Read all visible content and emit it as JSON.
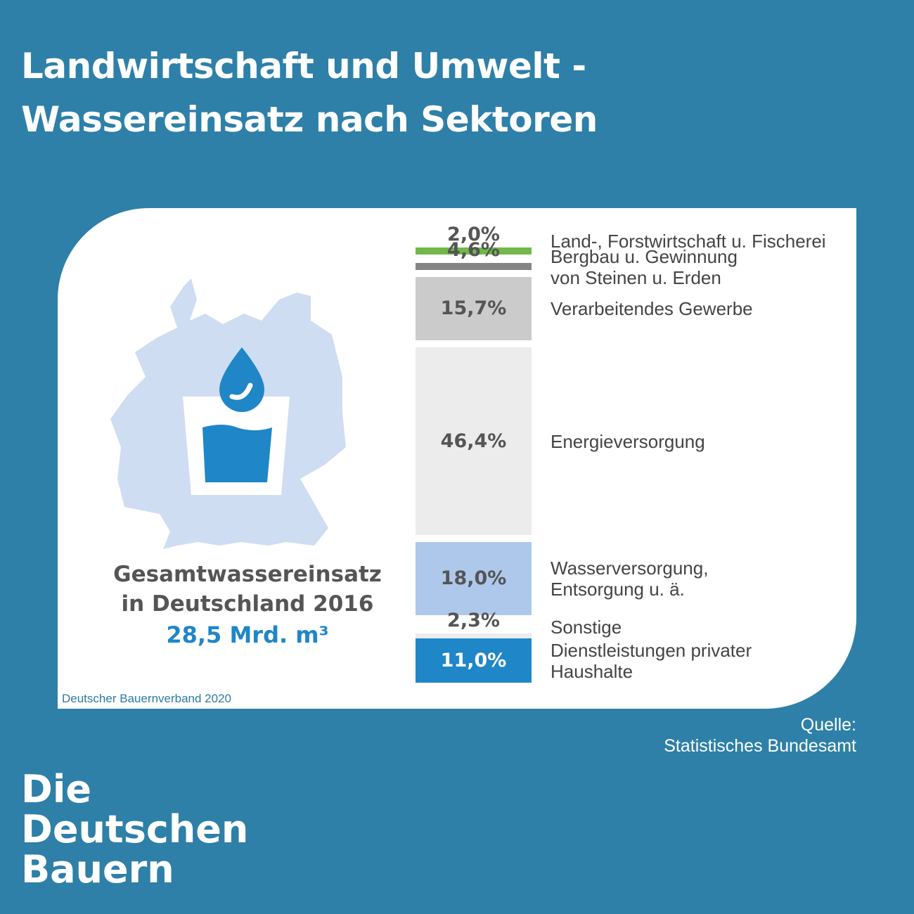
{
  "header": {
    "title_line1": "Landwirtschaft und Umwelt -",
    "title_line2": "Wassereinsatz nach Sektoren"
  },
  "total": {
    "line1": "Gesamtwassereinsatz",
    "line2": "in Deutschland 2016",
    "value": "28,5 Mrd. m³"
  },
  "credit": "Deutscher Bauernverband 2020",
  "source": {
    "line1": "Quelle:",
    "line2": "Statistisches Bundesamt"
  },
  "brand": {
    "line1": "Die",
    "line2": "Deutschen",
    "line3": "Bauern"
  },
  "colors": {
    "background": "#2e80a8",
    "accent_blue": "#1f86c8",
    "map_fill": "#cfddf3",
    "green": "#72b84b",
    "dark_gray": "#848484",
    "mid_gray": "#cbcbcb",
    "light_gray": "#ececec",
    "light_blue": "#aec8ec"
  },
  "icons": [
    "germany-map",
    "water-drop-icon",
    "water-glass-icon"
  ],
  "chart_data": {
    "type": "bar",
    "orientation": "stacked-vertical",
    "unit": "%",
    "categories": [
      "Land-, Forstwirtschaft u. Fischerei",
      "Bergbau u. Gewinnung von Steinen u. Erden",
      "Verarbeitendes Gewerbe",
      "Energieversorgung",
      "Wasserversorgung, Entsorgung u. ä.",
      "Sonstige",
      "Dienstleistungen privater Haushalte"
    ],
    "values": [
      2.0,
      4.6,
      15.7,
      46.4,
      18.0,
      2.3,
      11.0
    ],
    "value_labels": [
      "2,0%",
      "4,6%",
      "15,7%",
      "46,4%",
      "18,0%",
      "2,3%",
      "11,0%"
    ],
    "label_lines": [
      [
        "Land-, Forstwirtschaft u. Fischerei"
      ],
      [
        "Bergbau u. Gewinnung",
        "von Steinen u. Erden"
      ],
      [
        "Verarbeitendes Gewerbe"
      ],
      [
        "Energieversorgung"
      ],
      [
        "Wasserversorgung,",
        "Entsorgung u. ä."
      ],
      [
        "Sonstige"
      ],
      [
        "Dienstleistungen privater",
        "Haushalte"
      ]
    ],
    "colors": [
      "#72b84b",
      "#848484",
      "#cbcbcb",
      "#ececec",
      "#aec8ec",
      "#ececec",
      "#1f86c8"
    ]
  }
}
